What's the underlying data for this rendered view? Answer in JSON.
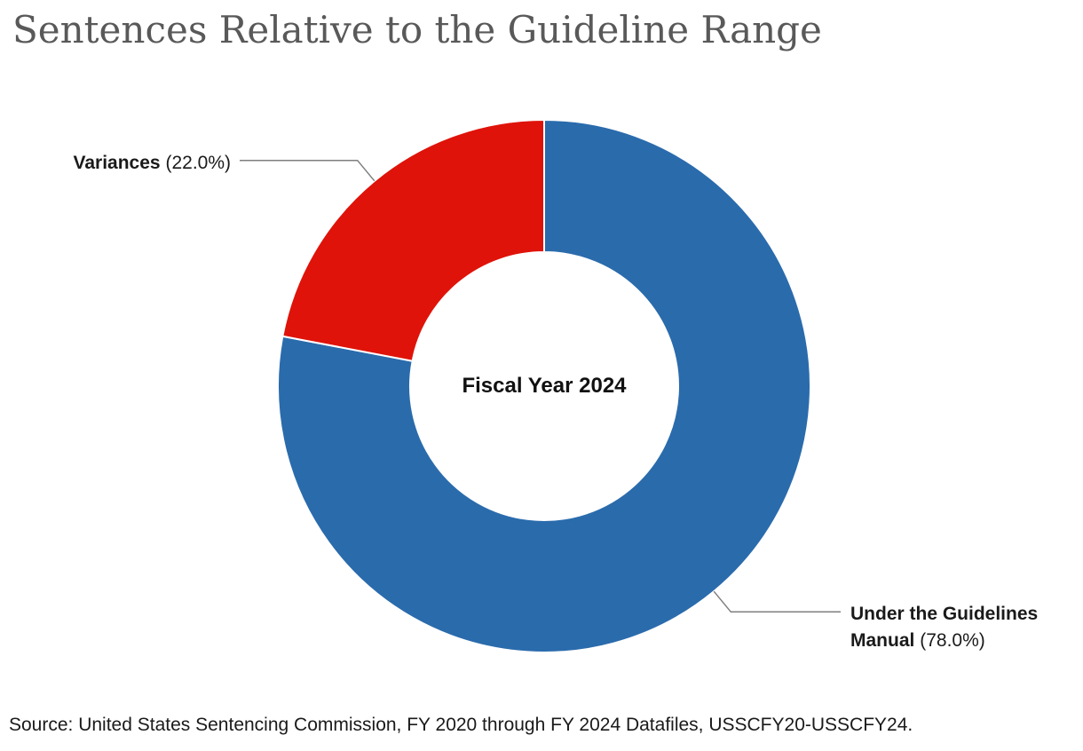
{
  "chart_data": {
    "type": "pie",
    "subtype": "donut",
    "title": "Sentences Relative to the Guideline Range",
    "center_label": "Fiscal Year 2024",
    "start_angle_deg": 0,
    "direction": "clockwise",
    "legend_position": "callout-labels",
    "slices": [
      {
        "name": "Under the Guidelines Manual",
        "value": 78.0,
        "display_pct": "78.0%",
        "color": "#2A6BAC",
        "label_side": "right",
        "label": {
          "bold_line1": "Under the Guidelines",
          "bold_line2": "Manual",
          "pct": "(78.0%)"
        }
      },
      {
        "name": "Variances",
        "value": 22.0,
        "display_pct": "22.0%",
        "color": "#DF1309",
        "label_side": "left",
        "label": {
          "bold": "Variances",
          "pct": "(22.0%)"
        }
      }
    ],
    "source": "Source: United States Sentencing Commission, FY 2020 through FY 2024 Datafiles, USSCFY20-USSCFY24."
  },
  "colors": {
    "title_gray": "#595959",
    "leader_line": "#7f7f7f",
    "text": "#1a1a1a",
    "background": "#ffffff"
  }
}
